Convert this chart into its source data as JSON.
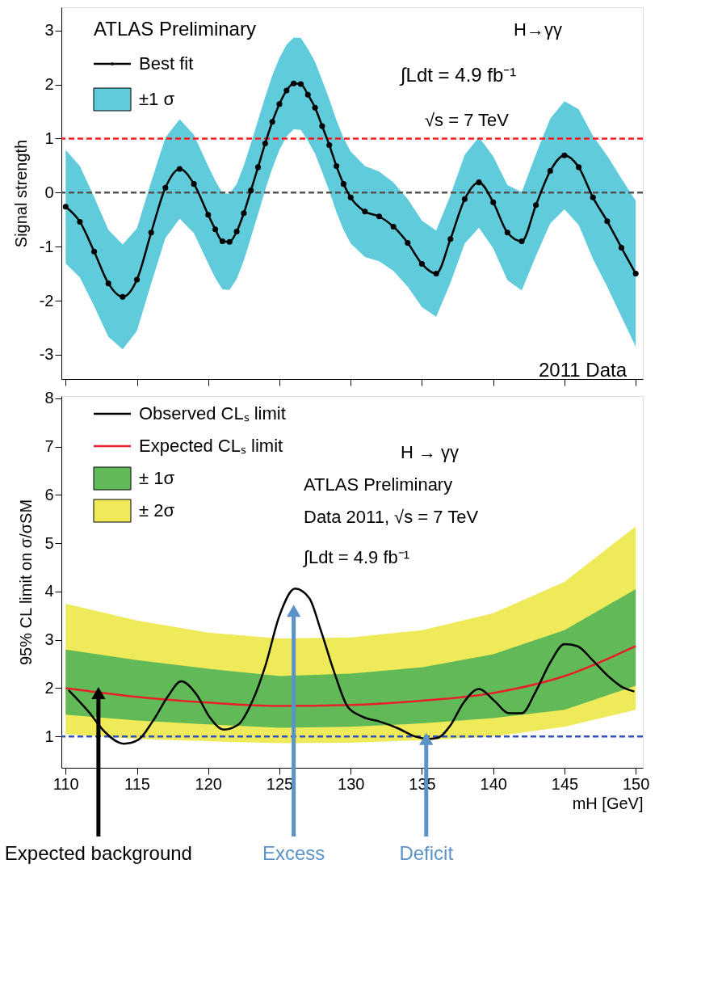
{
  "chart_data": [
    {
      "type": "line",
      "ylabel": "Signal strength",
      "xlim": [
        109.7,
        150.5
      ],
      "ylim": [
        -3.45,
        3.43
      ],
      "xticks": [
        110,
        115,
        120,
        125,
        130,
        135,
        140,
        145,
        150
      ],
      "yticks": [
        -3,
        -2,
        -1,
        0,
        1,
        2,
        3
      ],
      "tick_labels": "y",
      "legend": "top left",
      "line_style": "solid",
      "x": [
        110,
        111,
        112,
        113,
        114,
        115,
        116,
        117,
        118,
        119,
        120,
        120.5,
        121,
        121.5,
        122,
        122.5,
        123,
        123.5,
        124,
        124.5,
        125,
        125.5,
        126,
        126.5,
        127,
        127.5,
        128,
        128.5,
        129,
        129.5,
        130,
        131,
        132,
        133,
        134,
        135,
        136,
        137,
        138,
        139,
        140,
        141,
        142,
        143,
        144,
        145,
        146,
        147,
        148,
        149,
        150
      ],
      "series": [
        {
          "name": "Best fit",
          "type": "line",
          "color": "#000000",
          "marker": "circle",
          "values": [
            -0.26,
            -0.54,
            -1.09,
            -1.68,
            -1.93,
            -1.61,
            -0.74,
            0.09,
            0.44,
            0.16,
            -0.41,
            -0.68,
            -0.9,
            -0.91,
            -0.72,
            -0.38,
            0.04,
            0.47,
            0.91,
            1.31,
            1.64,
            1.89,
            2.02,
            2.01,
            1.81,
            1.57,
            1.23,
            0.88,
            0.49,
            0.16,
            -0.09,
            -0.35,
            -0.44,
            -0.63,
            -0.93,
            -1.32,
            -1.5,
            -0.86,
            -0.12,
            0.19,
            -0.18,
            -0.74,
            -0.9,
            -0.23,
            0.4,
            0.69,
            0.47,
            -0.09,
            -0.53,
            -1.02,
            -1.5
          ]
        },
        {
          "name": "±1 σ",
          "type": "line",
          "color": "#5fcbdb",
          "values": [
            null,
            null,
            null,
            null,
            null,
            null,
            null,
            null,
            null,
            null,
            null,
            null,
            null,
            null,
            null,
            null,
            null,
            null,
            null,
            null,
            null,
            null,
            null,
            null,
            null,
            null,
            null,
            null,
            null,
            null,
            null,
            null,
            null,
            null,
            null,
            null,
            null,
            null,
            null,
            null,
            null,
            null,
            null,
            null,
            null,
            null,
            null,
            null,
            null,
            null,
            null
          ],
          "upper": [
            0.79,
            0.49,
            -0.08,
            -0.69,
            -0.96,
            -0.66,
            0.2,
            1.02,
            1.36,
            1.07,
            0.49,
            0.22,
            -0.01,
            -0.02,
            0.16,
            0.5,
            0.91,
            1.34,
            1.77,
            2.17,
            2.49,
            2.74,
            2.87,
            2.86,
            2.66,
            2.42,
            2.08,
            1.73,
            1.34,
            1.01,
            0.76,
            0.49,
            0.39,
            0.19,
            -0.12,
            -0.52,
            -0.7,
            -0.05,
            0.7,
            1.03,
            0.67,
            0.14,
            0.01,
            0.71,
            1.37,
            1.69,
            1.54,
            1.05,
            0.68,
            0.26,
            -0.15
          ],
          "lower": [
            -1.31,
            -1.57,
            -2.1,
            -2.67,
            -2.9,
            -2.56,
            -1.68,
            -0.84,
            -0.48,
            -0.75,
            -1.31,
            -1.58,
            -1.79,
            -1.8,
            -1.6,
            -1.26,
            -0.83,
            -0.4,
            0.05,
            0.45,
            0.79,
            1.04,
            1.17,
            1.16,
            0.96,
            0.72,
            0.38,
            0.03,
            -0.36,
            -0.69,
            -0.94,
            -1.19,
            -1.27,
            -1.45,
            -1.74,
            -2.12,
            -2.3,
            -1.67,
            -0.94,
            -0.65,
            -1.03,
            -1.62,
            -1.81,
            -1.17,
            -0.57,
            -0.31,
            -0.6,
            -1.23,
            -1.74,
            -2.3,
            -2.85
          ]
        }
      ],
      "ref_lines": [
        {
          "axis": "y",
          "value": 1,
          "color": "#ff1a1a",
          "line_style": "dashed"
        },
        {
          "axis": "y",
          "value": 0,
          "color": "#555555",
          "line_style": "dashed"
        }
      ],
      "annotations": [
        "ATLAS Preliminary",
        "H→γγ",
        "∫Ldt = 4.9 fb⁻¹",
        "√s = 7 TeV",
        "2011 Data"
      ]
    },
    {
      "type": "line",
      "xlabel": "mH [GeV]",
      "ylabel": "95% CL limit on σ/σSM",
      "xlim": [
        109.7,
        150.5
      ],
      "ylim": [
        0.35,
        8.05
      ],
      "xticks": [
        110,
        115,
        120,
        125,
        130,
        135,
        140,
        145,
        150
      ],
      "yticks": [
        1,
        2,
        3,
        4,
        5,
        6,
        7,
        8
      ],
      "legend": "top left",
      "line_style": "solid",
      "series": [
        {
          "name": "Observed CLₛ limit",
          "type": "line",
          "color": "#000000",
          "x": [
            110.2,
            111.7,
            112.6,
            114.1,
            115.1,
            116.1,
            117.2,
            118.1,
            119.2,
            120.1,
            121.1,
            122.1,
            123.1,
            124.0,
            125.0,
            126.1,
            127.1,
            127.9,
            128.9,
            129.8,
            130.9,
            132.0,
            133.3,
            134.5,
            135.4,
            136.1,
            137.0,
            137.9,
            139.0,
            140.1,
            141.1,
            142.0,
            143.0,
            144.0,
            145.0,
            145.9,
            147.0,
            148.1,
            149.0,
            149.9
          ],
          "values": [
            1.96,
            1.48,
            1.14,
            0.85,
            0.93,
            1.31,
            1.84,
            2.14,
            1.86,
            1.4,
            1.14,
            1.24,
            1.73,
            2.45,
            3.5,
            4.06,
            3.86,
            3.2,
            2.28,
            1.61,
            1.4,
            1.31,
            1.17,
            1.0,
            0.95,
            0.97,
            1.23,
            1.69,
            1.98,
            1.73,
            1.48,
            1.48,
            1.94,
            2.53,
            2.91,
            2.87,
            2.57,
            2.24,
            2.03,
            1.93
          ]
        },
        {
          "name": "Expected CLₛ limit",
          "type": "line",
          "color": "#e8202a",
          "x": [
            110,
            115,
            120,
            125,
            130,
            135,
            140,
            145,
            150
          ],
          "values": [
            2.0,
            1.82,
            1.7,
            1.63,
            1.65,
            1.74,
            1.9,
            2.25,
            2.87
          ]
        },
        {
          "name": "± 1σ",
          "type": "line",
          "color": "#62b957",
          "x": [
            110,
            115,
            120,
            125,
            130,
            135,
            140,
            145,
            150
          ],
          "values": [
            null,
            null,
            null,
            null,
            null,
            null,
            null,
            null,
            null
          ],
          "upper": [
            2.8,
            2.58,
            2.4,
            2.25,
            2.3,
            2.43,
            2.7,
            3.2,
            4.05
          ],
          "lower": [
            1.45,
            1.33,
            1.25,
            1.18,
            1.2,
            1.27,
            1.38,
            1.55,
            2.05
          ]
        },
        {
          "name": "± 2σ",
          "type": "line",
          "color": "#eeea5a",
          "x": [
            110,
            115,
            120,
            125,
            130,
            135,
            140,
            145,
            150
          ],
          "values": [
            null,
            null,
            null,
            null,
            null,
            null,
            null,
            null,
            null
          ],
          "upper": [
            3.75,
            3.4,
            3.15,
            3.03,
            3.05,
            3.2,
            3.55,
            4.2,
            5.35
          ],
          "lower": [
            1.05,
            0.95,
            0.9,
            0.86,
            0.87,
            0.92,
            1.0,
            1.2,
            1.55
          ]
        }
      ],
      "ref_lines": [
        {
          "axis": "y",
          "value": 1,
          "color": "#3050c0",
          "line_style": "dashed"
        }
      ],
      "annotations": [
        "H → γγ",
        "ATLAS Preliminary",
        "Data 2011, √s = 7 TeV",
        "∫Ldt = 4.9 fb⁻¹",
        {
          "text": "Expected background",
          "x": 112.3,
          "y": 1.9
        },
        {
          "text": "Excess",
          "x": 126,
          "y": 3.6
        },
        {
          "text": "Deficit",
          "x": 135.3,
          "y": 0.95
        }
      ]
    }
  ]
}
